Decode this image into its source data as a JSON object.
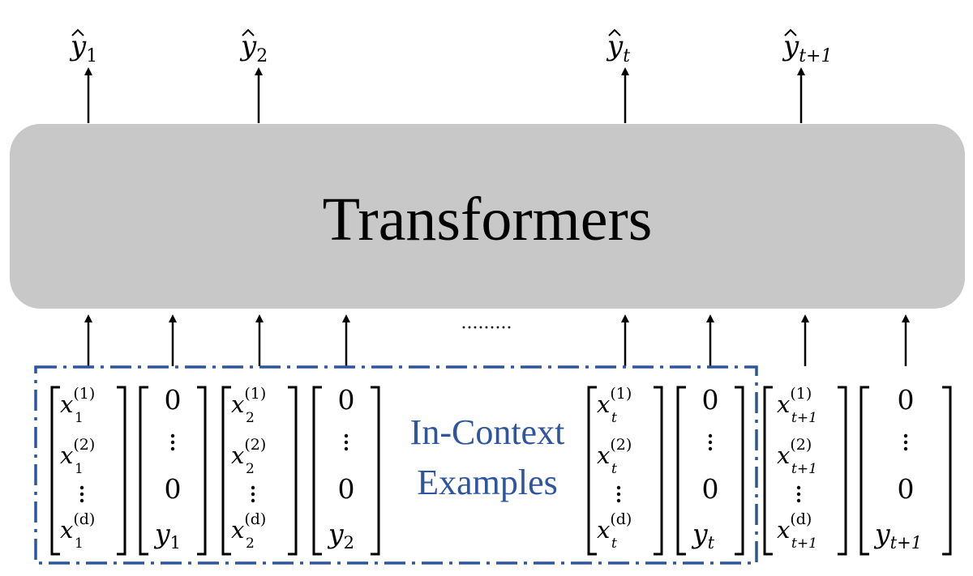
{
  "diagram": {
    "model_label": "Transformers",
    "outputs": [
      {
        "base": "y",
        "sub": "1"
      },
      {
        "base": "y",
        "sub": "2"
      },
      {
        "base": "y",
        "sub": "t"
      },
      {
        "base": "y",
        "sub": "t+1"
      }
    ],
    "ellipsis": "·········",
    "in_context_label": {
      "line1": "In-Context",
      "line2": "Examples"
    },
    "input_tokens": [
      {
        "kind": "feature",
        "sub": "1",
        "sups": [
          "(1)",
          "(2)",
          "(d)"
        ]
      },
      {
        "kind": "label",
        "top": "0",
        "mid": "0",
        "y_sub": "1"
      },
      {
        "kind": "feature",
        "sub": "2",
        "sups": [
          "(1)",
          "(2)",
          "(d)"
        ]
      },
      {
        "kind": "label",
        "top": "0",
        "mid": "0",
        "y_sub": "2"
      },
      {
        "kind": "feature",
        "sub": "t",
        "sups": [
          "(1)",
          "(2)",
          "(d)"
        ]
      },
      {
        "kind": "label",
        "top": "0",
        "mid": "0",
        "y_sub": "t"
      },
      {
        "kind": "feature",
        "sub": "t+1",
        "sups": [
          "(1)",
          "(2)",
          "(d)"
        ]
      },
      {
        "kind": "label",
        "top": "0",
        "mid": "0",
        "y_sub": "t+1"
      }
    ],
    "colors": {
      "box_fill": "#c8c8c8",
      "accent_blue": "#2e56a0",
      "ink": "#000000"
    }
  }
}
